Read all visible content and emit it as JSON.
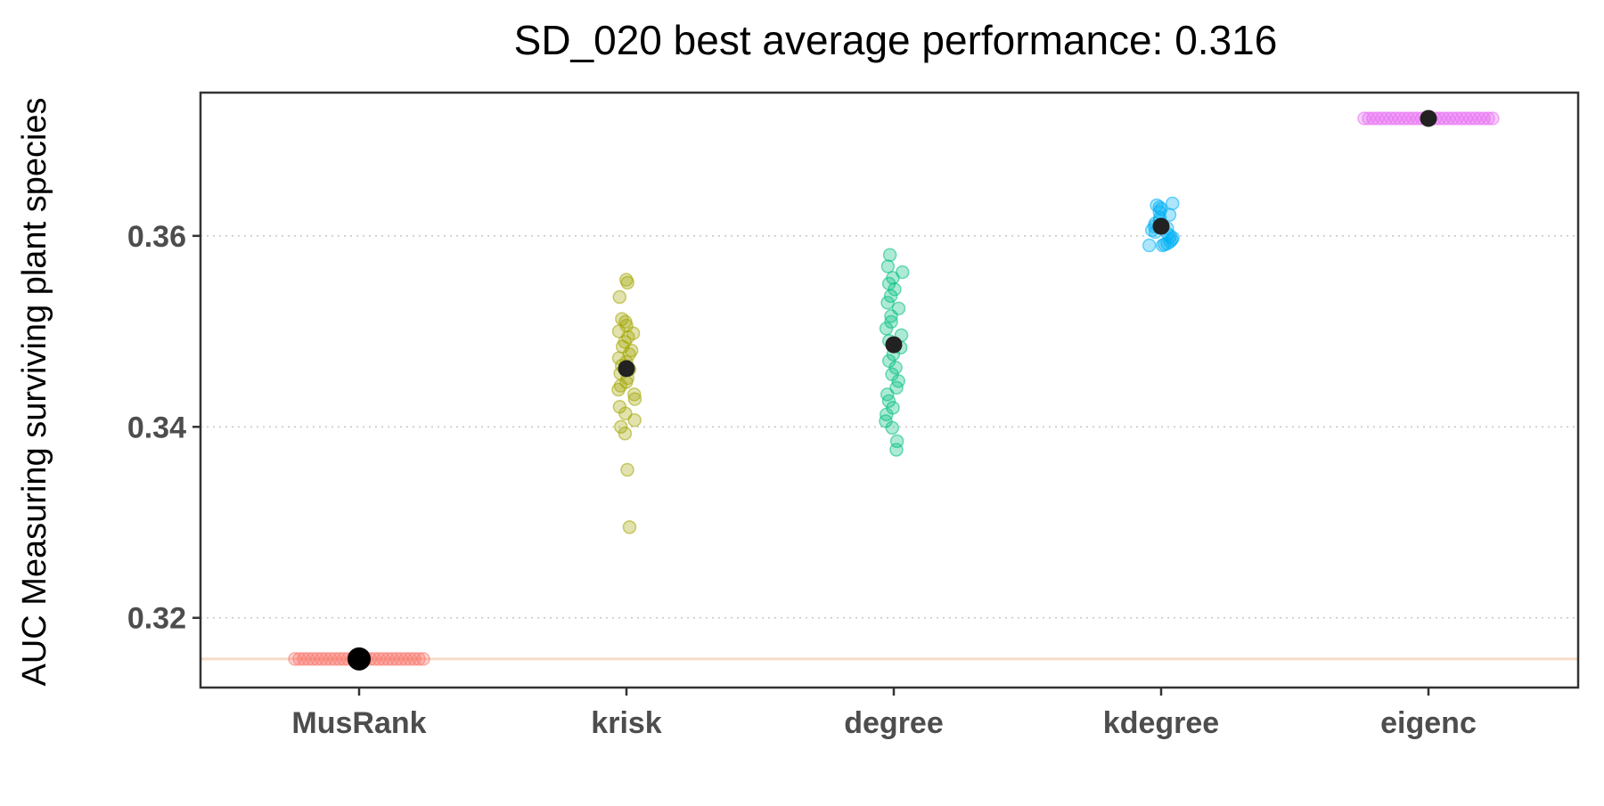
{
  "chart_data": {
    "type": "scatter",
    "title": "SD_020 best average performance: 0.316",
    "xlabel": "",
    "ylabel": "AUC Measuring surviving plant species",
    "categories": [
      "MusRank",
      "krisk",
      "degree",
      "kdegree",
      "eigenc"
    ],
    "ylim": [
      0.3127,
      0.375
    ],
    "yticks": [
      0.32,
      0.34,
      0.36
    ],
    "ytick_labels": [
      "0.32",
      "0.34",
      "0.36"
    ],
    "grid": "horizontal dotted major lines",
    "legend": "none",
    "reference_line": {
      "y": 0.3157,
      "color": "#f5dcc8"
    },
    "series": [
      {
        "category": "MusRank",
        "color": "#F8766D",
        "mean": 0.3157,
        "values": [
          0.3157,
          0.3157,
          0.3157,
          0.3157,
          0.3157,
          0.3157,
          0.3157,
          0.3157,
          0.3157,
          0.3157,
          0.3157,
          0.3157,
          0.3157,
          0.3157,
          0.3157,
          0.3157,
          0.3157,
          0.3157,
          0.3157,
          0.3157,
          0.3157,
          0.3157,
          0.3157,
          0.3157,
          0.3157,
          0.3157,
          0.3157,
          0.3157,
          0.3157,
          0.3157
        ]
      },
      {
        "category": "krisk",
        "color": "#A3A500",
        "mean": 0.3461,
        "values": [
          0.3554,
          0.3551,
          0.3536,
          0.3513,
          0.351,
          0.3506,
          0.35,
          0.3498,
          0.3494,
          0.3489,
          0.3484,
          0.348,
          0.3476,
          0.3472,
          0.3468,
          0.3464,
          0.346,
          0.3456,
          0.3451,
          0.3447,
          0.3443,
          0.3439,
          0.3434,
          0.3429,
          0.3421,
          0.3414,
          0.3407,
          0.34,
          0.3393,
          0.3355,
          0.3295
        ]
      },
      {
        "category": "degree",
        "color": "#00BF7D",
        "mean": 0.3486,
        "values": [
          0.358,
          0.3568,
          0.3562,
          0.3556,
          0.355,
          0.3544,
          0.3537,
          0.353,
          0.3524,
          0.3516,
          0.351,
          0.3503,
          0.3496,
          0.349,
          0.3483,
          0.3476,
          0.3469,
          0.3462,
          0.3455,
          0.3448,
          0.3441,
          0.3434,
          0.3427,
          0.342,
          0.3413,
          0.3406,
          0.3399,
          0.3385,
          0.3376
        ]
      },
      {
        "category": "kdegree",
        "color": "#00B0F6",
        "mean": 0.361,
        "values": [
          0.3634,
          0.3632,
          0.363,
          0.3628,
          0.3625,
          0.3622,
          0.3619,
          0.3616,
          0.3613,
          0.361,
          0.3608,
          0.3606,
          0.3604,
          0.3602,
          0.36,
          0.3598,
          0.3596,
          0.3594,
          0.3592,
          0.3591,
          0.359,
          0.359
        ]
      },
      {
        "category": "eigenc",
        "color": "#E76BF3",
        "mean": 0.3723,
        "values": [
          0.3723,
          0.3723,
          0.3723,
          0.3723,
          0.3723,
          0.3723,
          0.3723,
          0.3723,
          0.3723,
          0.3723,
          0.3723,
          0.3723,
          0.3723,
          0.3723,
          0.3723,
          0.3723,
          0.3723,
          0.3723,
          0.3723,
          0.3723,
          0.3723,
          0.3723,
          0.3723,
          0.3723,
          0.3723,
          0.3723,
          0.3723,
          0.3723,
          0.3723,
          0.3723
        ]
      }
    ]
  }
}
